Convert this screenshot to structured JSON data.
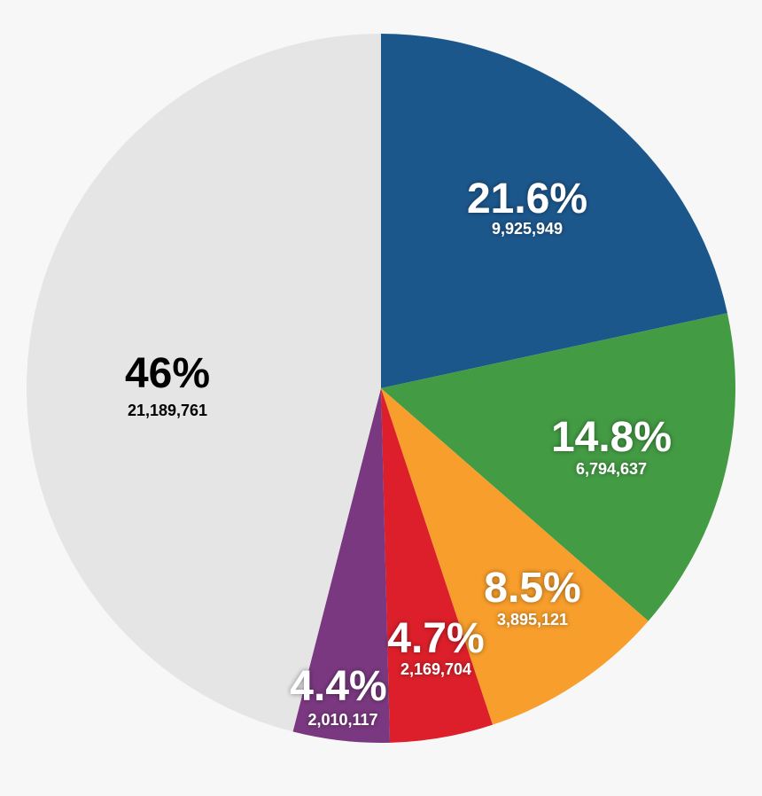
{
  "chart_data": {
    "type": "pie",
    "start_angle_deg": 0,
    "direction": "clockwise",
    "slices": [
      {
        "percent_label": "21.6%",
        "count_label": "9,925,949",
        "value": 21.6,
        "color": "#1c578c",
        "text_color": "#ffffff"
      },
      {
        "percent_label": "14.8%",
        "count_label": "6,794,637",
        "value": 14.8,
        "color": "#439b44",
        "text_color": "#ffffff"
      },
      {
        "percent_label": "8.5%",
        "count_label": "3,895,121",
        "value": 8.5,
        "color": "#f89e2c",
        "text_color": "#ffffff"
      },
      {
        "percent_label": "4.7%",
        "count_label": "2,169,704",
        "value": 4.7,
        "color": "#dc1f2a",
        "text_color": "#ffffff"
      },
      {
        "percent_label": "4.4%",
        "count_label": "2,010,117",
        "value": 4.4,
        "color": "#7a3880",
        "text_color": "#ffffff"
      },
      {
        "percent_label": "46%",
        "count_label": "21,189,761",
        "value": 46,
        "color": "#e5e5e5",
        "text_color": "#000000"
      }
    ]
  }
}
